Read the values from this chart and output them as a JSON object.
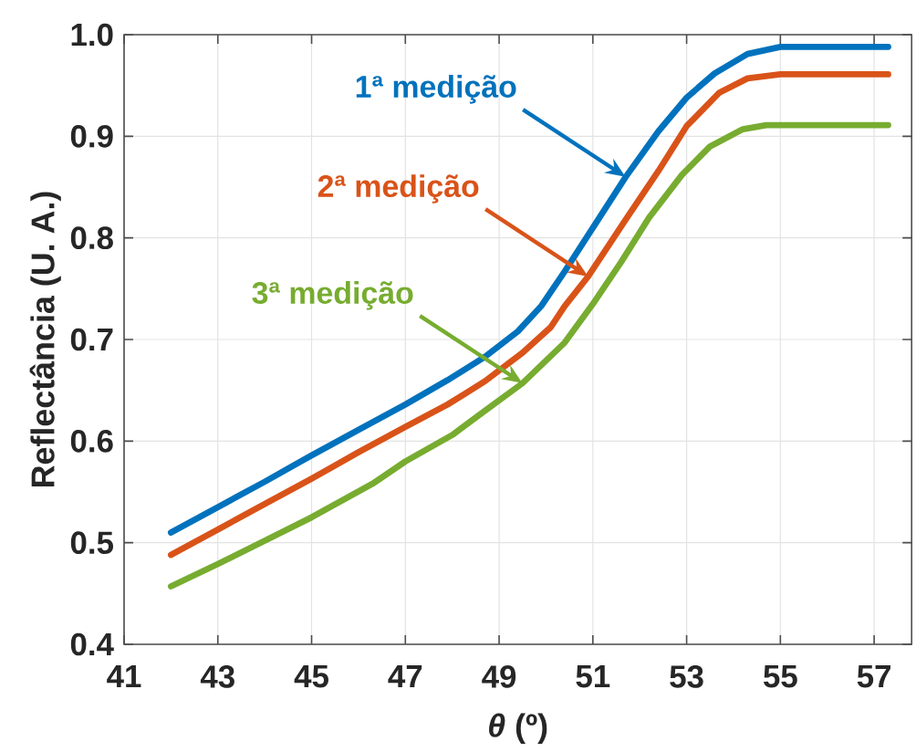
{
  "chart_data": {
    "type": "line",
    "xlabel": "*θ* (º)",
    "ylabel": "Reflectância (U. A.)",
    "xlim": [
      41,
      57.8
    ],
    "ylim": [
      0.4,
      1.0
    ],
    "xticks": [
      41,
      43,
      45,
      47,
      49,
      51,
      53,
      55,
      57
    ],
    "yticks": [
      {
        "value": 0.4,
        "label": "0.4"
      },
      {
        "value": 0.5,
        "label": "0.5"
      },
      {
        "value": 0.6,
        "label": "0.6"
      },
      {
        "value": 0.7,
        "label": "0.7"
      },
      {
        "value": 0.8,
        "label": "0.8"
      },
      {
        "value": 0.9,
        "label": "0.9"
      },
      {
        "value": 1.0,
        "label": "1.0"
      }
    ],
    "grid": true,
    "series": [
      {
        "name": "1ª medição",
        "color": "#0072bd",
        "x": [
          42,
          43,
          44,
          45,
          46,
          47,
          47.9,
          48.7,
          49.4,
          49.9,
          50.4,
          51,
          51.7,
          52.4,
          53,
          53.6,
          54.3,
          55,
          57.3
        ],
        "values": [
          0.51,
          0.535,
          0.56,
          0.586,
          0.611,
          0.636,
          0.66,
          0.683,
          0.708,
          0.733,
          0.767,
          0.81,
          0.86,
          0.905,
          0.938,
          0.962,
          0.981,
          0.988,
          0.988
        ]
      },
      {
        "name": "2ª medição",
        "color": "#d95319",
        "x": [
          42,
          43,
          44,
          45,
          46,
          47,
          47.9,
          48.7,
          49.5,
          50.1,
          50.4,
          50.9,
          51.7,
          52.4,
          53,
          53.7,
          54.3,
          55,
          57.3
        ],
        "values": [
          0.488,
          0.513,
          0.538,
          0.563,
          0.589,
          0.614,
          0.636,
          0.659,
          0.687,
          0.712,
          0.733,
          0.762,
          0.818,
          0.866,
          0.91,
          0.943,
          0.957,
          0.961,
          0.961
        ]
      },
      {
        "name": "3ª medição",
        "color": "#77ac30",
        "x": [
          42,
          43,
          44,
          45,
          46.3,
          47,
          48,
          48.7,
          49.5,
          50.4,
          51,
          51.6,
          52.2,
          52.9,
          53.5,
          54.2,
          54.7,
          57.3
        ],
        "values": [
          0.457,
          0.479,
          0.502,
          0.525,
          0.558,
          0.58,
          0.606,
          0.63,
          0.657,
          0.697,
          0.735,
          0.776,
          0.82,
          0.862,
          0.89,
          0.907,
          0.911,
          0.911
        ]
      }
    ]
  }
}
